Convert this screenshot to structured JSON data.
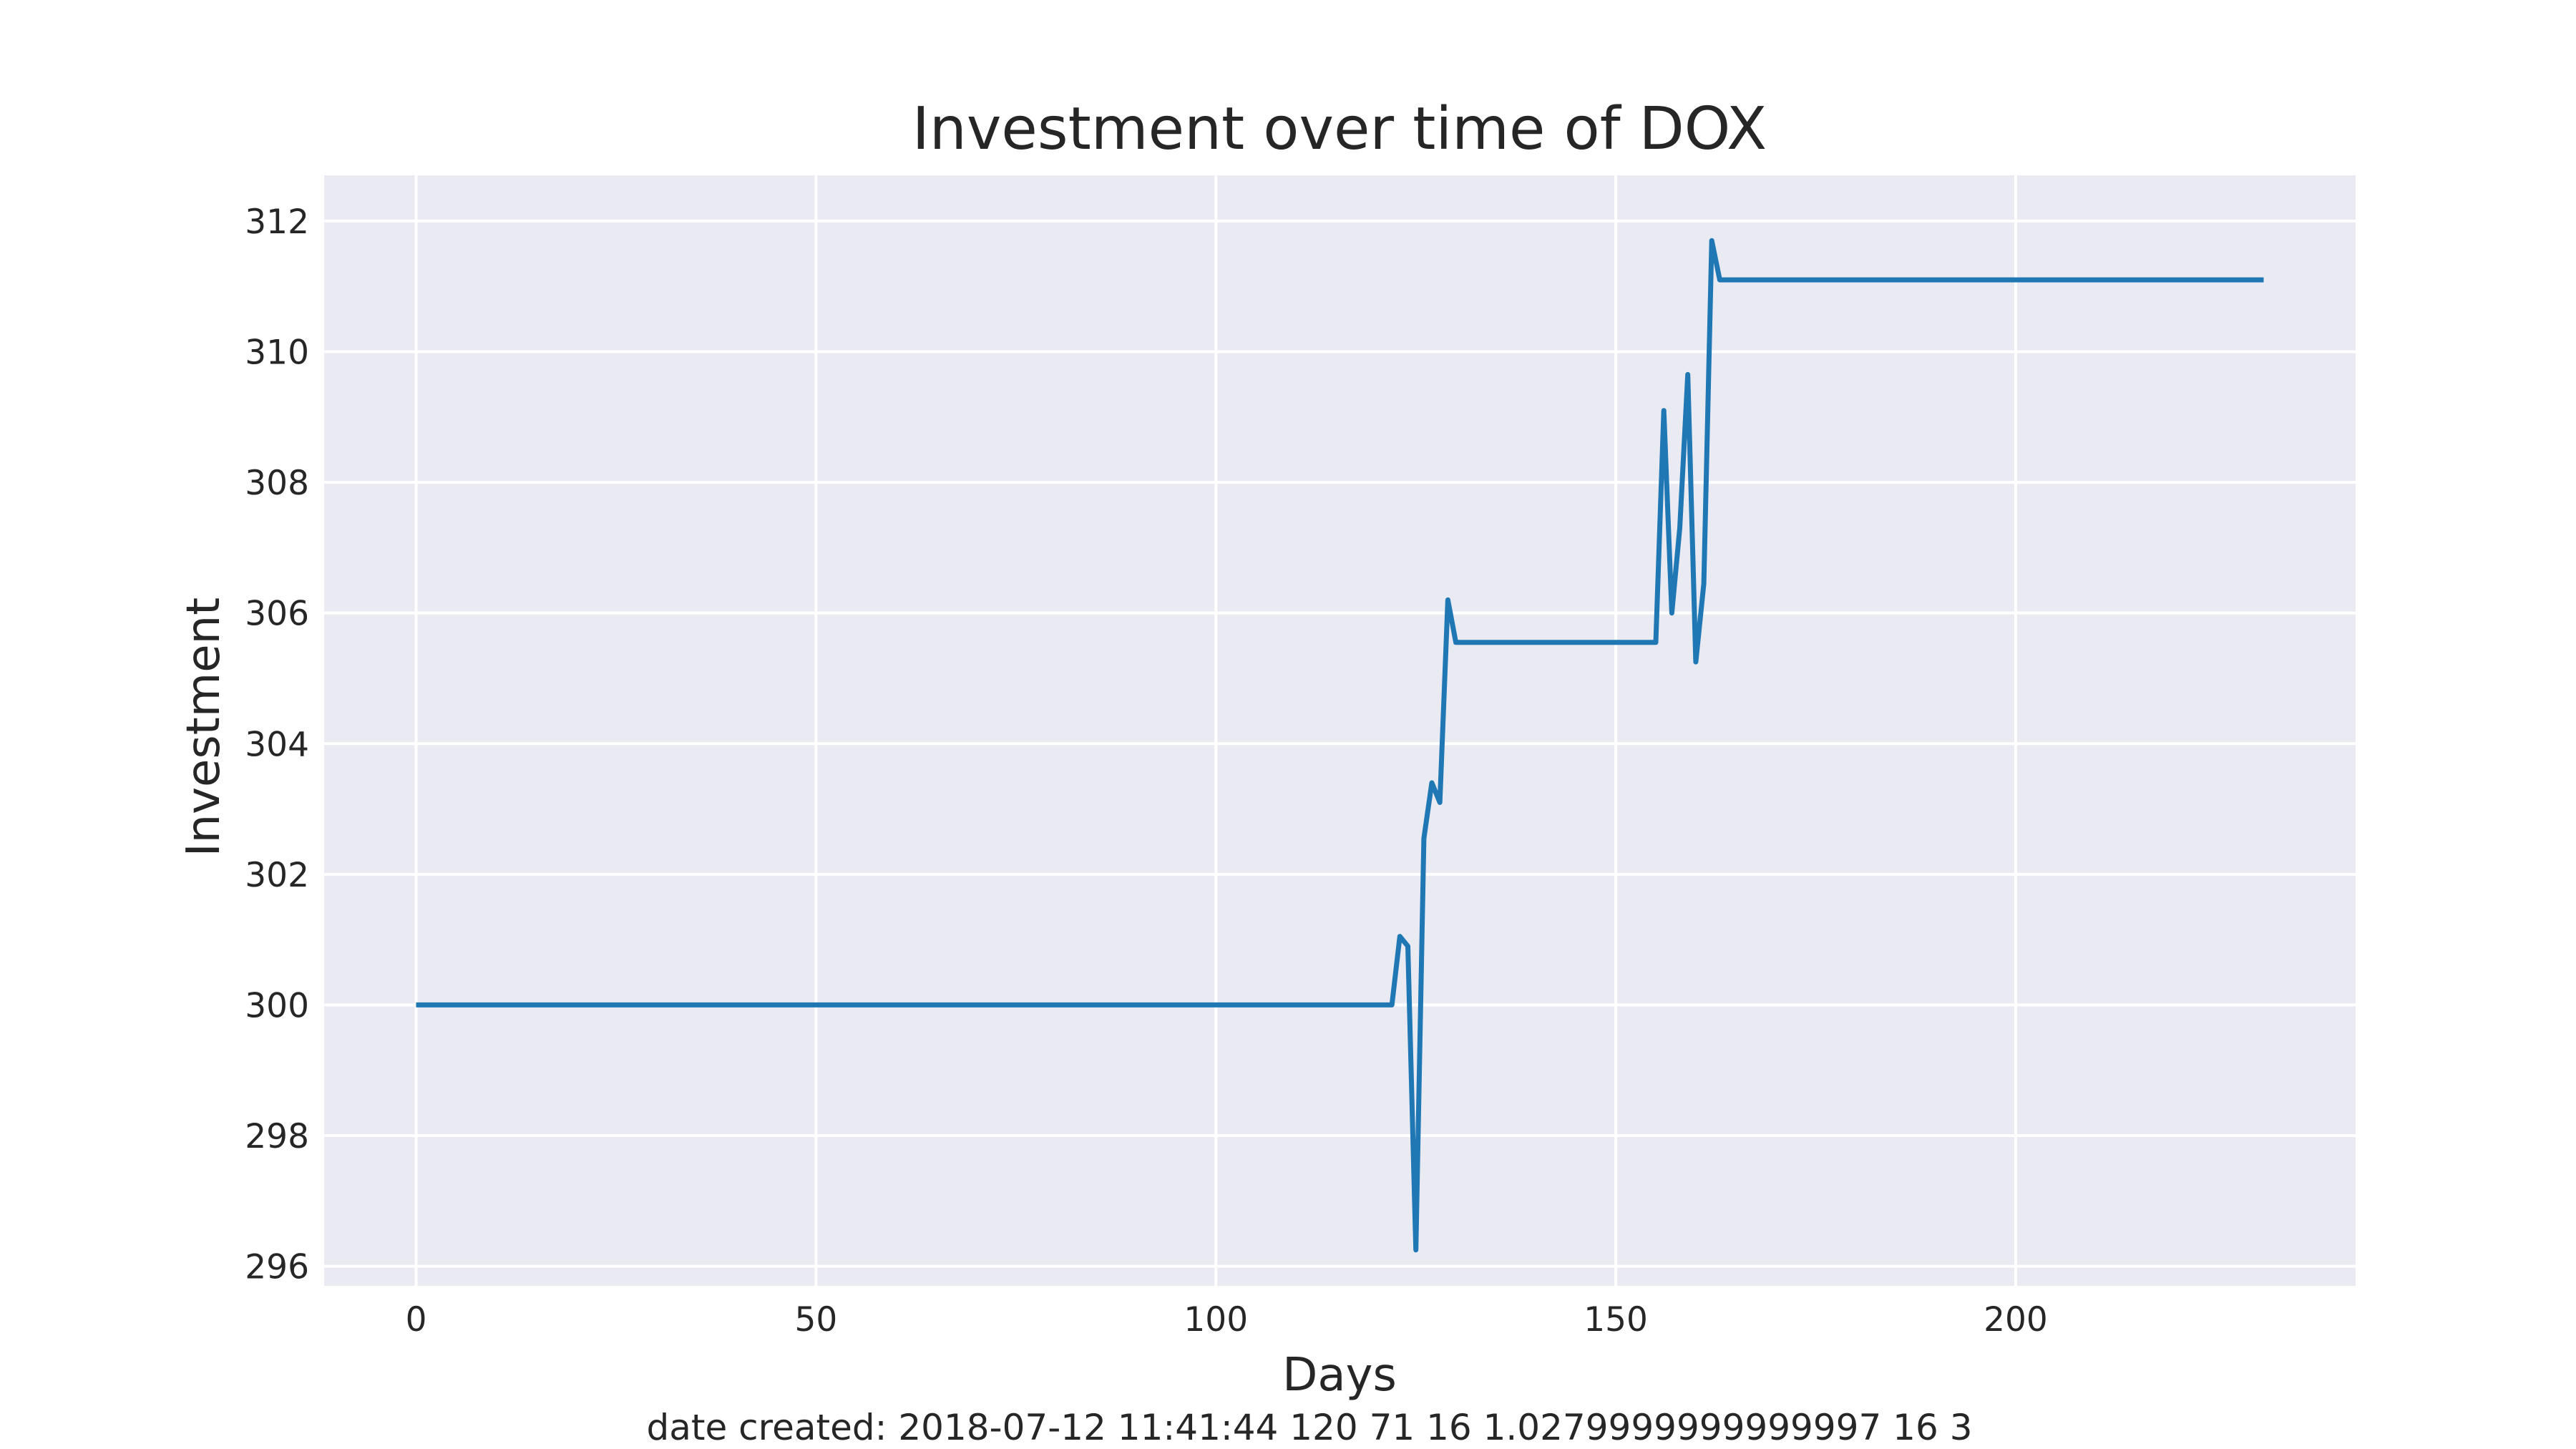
{
  "chart_data": {
    "type": "line",
    "title": "Investment over time of DOX",
    "xlabel": "Days",
    "ylabel": "Investment",
    "xlim": [
      -11.5,
      242.5
    ],
    "ylim": [
      295.7,
      312.7
    ],
    "xticks": [
      0,
      50,
      100,
      150,
      200
    ],
    "yticks": [
      296,
      298,
      300,
      302,
      304,
      306,
      308,
      310,
      312
    ],
    "grid": true,
    "legend": "none",
    "colors": {
      "background": "#eaeaf2",
      "grid": "#ffffff",
      "line": "#1f77b4",
      "text": "#262626"
    },
    "series": [
      {
        "x": [
          0,
          50,
          100,
          122,
          123,
          124,
          125,
          126,
          127,
          128,
          129,
          130,
          140,
          150,
          155,
          156,
          157,
          158,
          159,
          160,
          161,
          162,
          163,
          180,
          200,
          231
        ],
        "y": [
          300.0,
          300.0,
          300.0,
          300.0,
          301.05,
          300.9,
          296.25,
          302.55,
          303.4,
          303.1,
          306.2,
          305.55,
          305.55,
          305.55,
          305.55,
          309.1,
          306.0,
          307.3,
          309.65,
          305.25,
          306.45,
          311.7,
          311.1,
          311.1,
          311.1,
          311.1
        ]
      }
    ]
  },
  "caption": "date created: 2018-07-12 11:41:44 120 71 16 1.0279999999999997 16 3"
}
